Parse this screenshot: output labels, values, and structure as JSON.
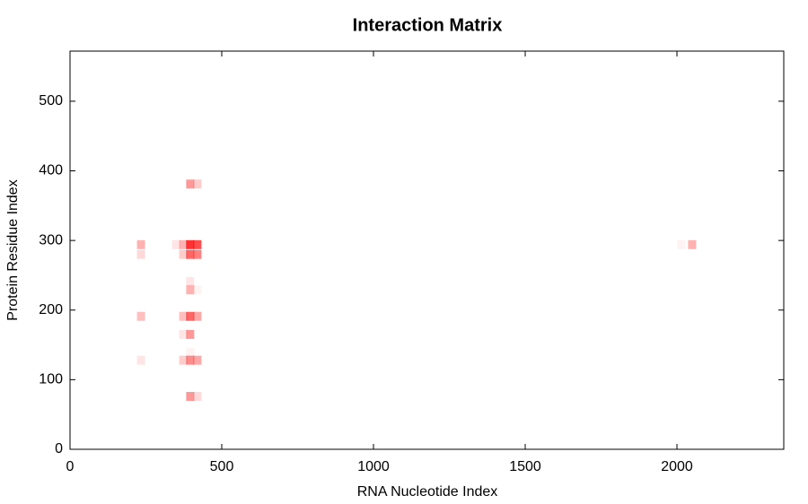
{
  "chart_data": {
    "type": "heatmap",
    "title": "Interaction Matrix",
    "x_label": "RNA Nucleotide Index",
    "y_label": "Protein Residue Index",
    "color": "#ff0000",
    "xlim": [
      0,
      2352
    ],
    "ylim": [
      0,
      572
    ],
    "xticks": [
      0,
      500,
      1000,
      1500,
      2000
    ],
    "yticks": [
      0,
      100,
      200,
      300,
      400,
      500
    ],
    "x": [
      396,
      420,
      234,
      234,
      349,
      373,
      396,
      420,
      373,
      396,
      420,
      396,
      396,
      420,
      234,
      373,
      396,
      420,
      373,
      396,
      396,
      234,
      373,
      396,
      420,
      396,
      420,
      2015,
      2050
    ],
    "y": [
      381,
      381,
      294,
      280,
      294,
      294,
      294,
      294,
      280,
      280,
      280,
      241,
      229,
      229,
      191,
      191,
      191,
      191,
      165,
      165,
      139,
      128,
      128,
      128,
      128,
      76,
      76,
      294,
      294
    ],
    "values": [
      0.4,
      0.2,
      0.3,
      0.15,
      0.1,
      0.3,
      0.8,
      0.7,
      0.2,
      0.6,
      0.5,
      0.1,
      0.3,
      0.05,
      0.25,
      0.25,
      0.6,
      0.35,
      0.1,
      0.4,
      0.05,
      0.1,
      0.2,
      0.45,
      0.35,
      0.4,
      0.15,
      0.05,
      0.3
    ]
  }
}
